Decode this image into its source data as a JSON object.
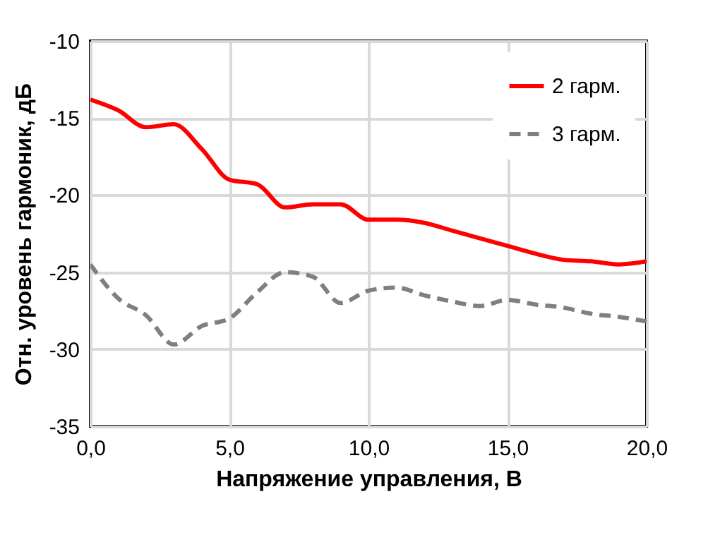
{
  "chart_data": {
    "type": "line",
    "xlabel": "Напряжение управления, В",
    "ylabel": "Отн. уровень гармоник, дБ",
    "x": [
      0,
      1,
      2,
      3,
      4,
      5,
      6,
      7,
      8,
      9,
      10,
      11,
      12,
      13,
      14,
      15,
      16,
      17,
      18,
      19,
      20
    ],
    "series": [
      {
        "name": "2 гарм.",
        "color": "#ff0000",
        "line_style": "solid",
        "values": [
          -13.8,
          -14.5,
          -15.6,
          -15.4,
          -17,
          -19,
          -19.3,
          -20.8,
          -20.6,
          -20.6,
          -21.6,
          -21.6,
          -21.8,
          -22.3,
          -22.8,
          -23.3,
          -23.8,
          -24.2,
          -24.3,
          -24.5,
          -24.3
        ]
      },
      {
        "name": "3 гарм.",
        "color": "#7f7f7f",
        "line_style": "dashed",
        "values": [
          -24.5,
          -26.7,
          -27.8,
          -29.7,
          -28.5,
          -28,
          -26.3,
          -25,
          -25.3,
          -27,
          -26.2,
          -26,
          -26.5,
          -26.9,
          -27.2,
          -26.8,
          -27.1,
          -27.3,
          -27.7,
          -27.9,
          -28.2
        ]
      }
    ],
    "xlim": [
      0,
      20
    ],
    "xticks": [
      {
        "value": 0,
        "label": "0,0"
      },
      {
        "value": 5,
        "label": "5,0"
      },
      {
        "value": 10,
        "label": "10,0"
      },
      {
        "value": 15,
        "label": "15,0"
      },
      {
        "value": 20,
        "label": "20,0"
      }
    ],
    "ylim": [
      -35,
      -10
    ],
    "yticks": [
      -35,
      -30,
      -25,
      -20,
      -15,
      -10
    ],
    "grid": true,
    "legend": "top right"
  }
}
